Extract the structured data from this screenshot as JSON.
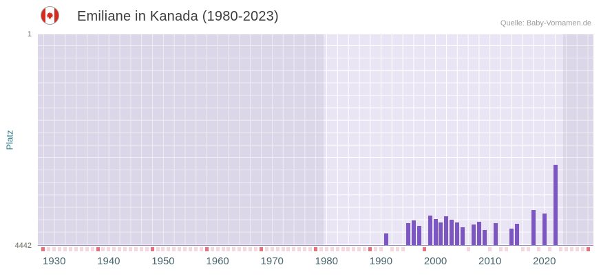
{
  "header": {
    "title": "Emiliane in Kanada (1980-2023)",
    "source": "Quelle: Baby-Vornamen.de"
  },
  "chart_data": {
    "type": "bar",
    "title": "Emiliane in Kanada (1980-2023)",
    "xlabel": "",
    "ylabel": "Platz",
    "y_axis": {
      "top": 1,
      "bottom": 4442,
      "inverted": true
    },
    "x_range": [
      1927,
      2029
    ],
    "x_ticks": [
      1930,
      1940,
      1950,
      1960,
      1970,
      1980,
      1990,
      2000,
      2010,
      2020
    ],
    "data_period": {
      "start": 1980,
      "end": 2023
    },
    "out_of_range_bands": [
      {
        "from": 1927,
        "to": 1979.5
      },
      {
        "from": 2023.5,
        "to": 2029
      }
    ],
    "grid": true,
    "legend": "none",
    "series": [
      {
        "name": "Platz",
        "points": [
          {
            "year": 1991,
            "rank": 4190
          },
          {
            "year": 1995,
            "rank": 3980
          },
          {
            "year": 1996,
            "rank": 3920
          },
          {
            "year": 1997,
            "rank": 4040
          },
          {
            "year": 1999,
            "rank": 3820
          },
          {
            "year": 2000,
            "rank": 3890
          },
          {
            "year": 2001,
            "rank": 3960
          },
          {
            "year": 2002,
            "rank": 3840
          },
          {
            "year": 2003,
            "rank": 3900
          },
          {
            "year": 2004,
            "rank": 3970
          },
          {
            "year": 2005,
            "rank": 4060
          },
          {
            "year": 2007,
            "rank": 4010
          },
          {
            "year": 2008,
            "rank": 3950
          },
          {
            "year": 2009,
            "rank": 4130
          },
          {
            "year": 2011,
            "rank": 3980
          },
          {
            "year": 2014,
            "rank": 4090
          },
          {
            "year": 2015,
            "rank": 4000
          },
          {
            "year": 2018,
            "rank": 3710
          },
          {
            "year": 2020,
            "rank": 3770
          },
          {
            "year": 2022,
            "rank": 2750
          }
        ]
      }
    ],
    "rug": {
      "from": 1928,
      "to": 2028,
      "dark_year_ending": 8
    },
    "colors": {
      "bar": "#7d57c1",
      "plot_bg": "#e9e5f4",
      "grid": "#ffffff",
      "band_overlay": "rgba(98,91,125,0.10)",
      "axis_line": "#9a90c6",
      "rug_light": "#f6d7e0",
      "rug_dark": "#e4737f",
      "ylabel": "#2e7d8c",
      "xtick": "#47666f",
      "ytick": "#6b6b60",
      "title": "#3d3d3d",
      "source": "#9b9b9b"
    }
  }
}
